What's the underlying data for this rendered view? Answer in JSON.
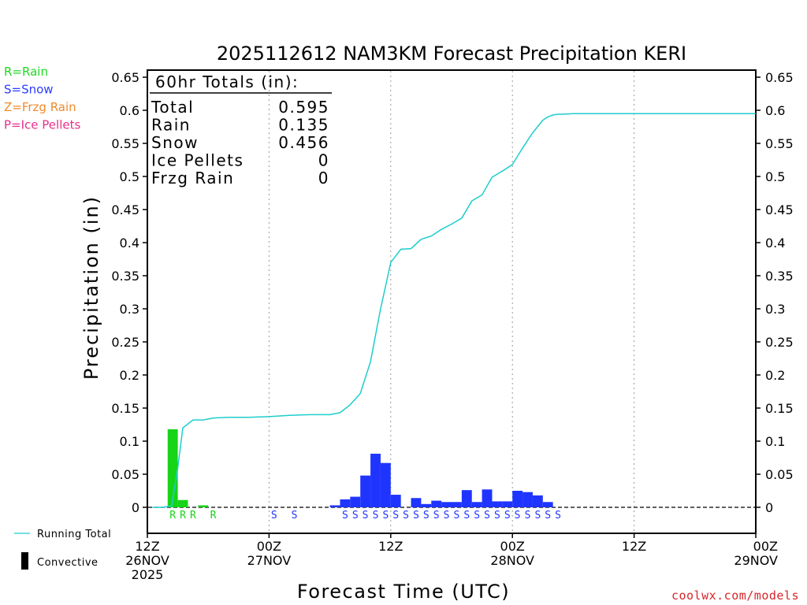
{
  "chart_data": {
    "type": "bar",
    "title": "2025112612 NAM3KM Forecast Precipitation KERI",
    "xlabel": "Forecast Time (UTC)",
    "ylabel": "Precipitation (in)",
    "ylim": [
      -0.035,
      0.66
    ],
    "yticks": [
      0,
      0.05,
      0.1,
      0.15,
      0.2,
      0.25,
      0.3,
      0.35,
      0.4,
      0.45,
      0.5,
      0.55,
      0.6,
      0.65
    ],
    "ytick_labels": [
      "0",
      "0.05",
      "0.1",
      "0.15",
      "0.2",
      "0.25",
      "0.3",
      "0.35",
      "0.4",
      "0.45",
      "0.5",
      "0.55",
      "0.6",
      "0.65"
    ],
    "xlim_hours": [
      0,
      60
    ],
    "xticks": [
      {
        "hour": 0,
        "lines": [
          "12Z",
          "26NOV",
          "2025"
        ]
      },
      {
        "hour": 12,
        "lines": [
          "00Z",
          "27NOV"
        ]
      },
      {
        "hour": 24,
        "lines": [
          "12Z"
        ]
      },
      {
        "hour": 36,
        "lines": [
          "00Z",
          "28NOV"
        ]
      },
      {
        "hour": 48,
        "lines": [
          "12Z"
        ]
      },
      {
        "hour": 60,
        "lines": [
          "00Z",
          "29NOV"
        ]
      }
    ],
    "vertical_grid_hours": [
      12,
      24,
      36,
      48
    ],
    "totals_box": {
      "header": "60hr Totals (in):",
      "rows": [
        {
          "label": "Total",
          "value": "0.595"
        },
        {
          "label": "Rain",
          "value": "0.135"
        },
        {
          "label": "Snow",
          "value": "0.456"
        },
        {
          "label": "Ice Pellets",
          "value": "0"
        },
        {
          "label": "Frzg Rain",
          "value": "0"
        }
      ]
    },
    "type_legend": [
      {
        "text": "R=Rain",
        "color": "#1ed81e"
      },
      {
        "text": "S=Snow",
        "color": "#2a3cff"
      },
      {
        "text": "Z=Frzg Rain",
        "color": "#ef8a2c"
      },
      {
        "text": "P=Ice Pellets",
        "color": "#e8308a"
      }
    ],
    "bottom_legend": {
      "running_total": "Running Total",
      "convective": "Convective"
    },
    "credit": "coolwx.com/models",
    "colors": {
      "rain": "#16d416",
      "snow": "#1f35ff",
      "running_total": "#1ecdcd",
      "convective": "#000000"
    },
    "bars": [
      {
        "hour": 3,
        "value": 0.118,
        "type": "rain"
      },
      {
        "hour": 4,
        "value": 0.011,
        "type": "rain"
      },
      {
        "hour": 6,
        "value": 0.003,
        "type": "rain"
      },
      {
        "hour": 19,
        "value": 0.003,
        "type": "snow"
      },
      {
        "hour": 20,
        "value": 0.012,
        "type": "snow"
      },
      {
        "hour": 21,
        "value": 0.016,
        "type": "snow"
      },
      {
        "hour": 22,
        "value": 0.048,
        "type": "snow"
      },
      {
        "hour": 23,
        "value": 0.081,
        "type": "snow"
      },
      {
        "hour": 24,
        "value": 0.067,
        "type": "snow"
      },
      {
        "hour": 25,
        "value": 0.019,
        "type": "snow"
      },
      {
        "hour": 27,
        "value": 0.014,
        "type": "snow"
      },
      {
        "hour": 28,
        "value": 0.005,
        "type": "snow"
      },
      {
        "hour": 29,
        "value": 0.01,
        "type": "snow"
      },
      {
        "hour": 30,
        "value": 0.008,
        "type": "snow"
      },
      {
        "hour": 31,
        "value": 0.008,
        "type": "snow"
      },
      {
        "hour": 32,
        "value": 0.026,
        "type": "snow"
      },
      {
        "hour": 33,
        "value": 0.008,
        "type": "snow"
      },
      {
        "hour": 34,
        "value": 0.027,
        "type": "snow"
      },
      {
        "hour": 35,
        "value": 0.009,
        "type": "snow"
      },
      {
        "hour": 36,
        "value": 0.009,
        "type": "snow"
      },
      {
        "hour": 37,
        "value": 0.025,
        "type": "snow"
      },
      {
        "hour": 38,
        "value": 0.023,
        "type": "snow"
      },
      {
        "hour": 39,
        "value": 0.018,
        "type": "snow"
      },
      {
        "hour": 40,
        "value": 0.008,
        "type": "snow"
      }
    ],
    "precip_type_letters": [
      {
        "hour": 3,
        "letter": "R"
      },
      {
        "hour": 4,
        "letter": "R"
      },
      {
        "hour": 5,
        "letter": "R"
      },
      {
        "hour": 7,
        "letter": "R"
      },
      {
        "hour": 13,
        "letter": "S"
      },
      {
        "hour": 15,
        "letter": "S"
      },
      {
        "hour": 20,
        "letter": "S"
      },
      {
        "hour": 21,
        "letter": "S"
      },
      {
        "hour": 22,
        "letter": "S"
      },
      {
        "hour": 23,
        "letter": "S"
      },
      {
        "hour": 24,
        "letter": "S"
      },
      {
        "hour": 25,
        "letter": "S"
      },
      {
        "hour": 26,
        "letter": "S"
      },
      {
        "hour": 27,
        "letter": "S"
      },
      {
        "hour": 28,
        "letter": "S"
      },
      {
        "hour": 29,
        "letter": "S"
      },
      {
        "hour": 30,
        "letter": "S"
      },
      {
        "hour": 31,
        "letter": "S"
      },
      {
        "hour": 32,
        "letter": "S"
      },
      {
        "hour": 33,
        "letter": "S"
      },
      {
        "hour": 34,
        "letter": "S"
      },
      {
        "hour": 35,
        "letter": "S"
      },
      {
        "hour": 36,
        "letter": "S"
      },
      {
        "hour": 37,
        "letter": "S"
      },
      {
        "hour": 38,
        "letter": "S"
      },
      {
        "hour": 39,
        "letter": "S"
      },
      {
        "hour": 40,
        "letter": "S"
      },
      {
        "hour": 41,
        "letter": "S"
      }
    ],
    "running_total": {
      "hours": [
        0.5,
        1.5,
        2.4,
        3.0,
        3.5,
        4.5,
        5.5,
        6.5,
        8,
        10,
        12,
        14,
        16,
        18,
        19,
        20,
        21,
        22,
        23,
        23.5,
        24,
        25,
        26,
        27,
        28,
        29,
        30,
        31,
        32,
        33,
        34,
        35,
        36,
        37,
        38,
        39,
        39.5,
        40,
        40.5,
        41,
        42,
        43,
        44,
        46,
        48,
        50,
        52,
        54,
        56,
        58,
        60
      ],
      "values": [
        0,
        0,
        0.002,
        0.06,
        0.12,
        0.132,
        0.132,
        0.135,
        0.136,
        0.136,
        0.137,
        0.139,
        0.14,
        0.14,
        0.143,
        0.155,
        0.172,
        0.22,
        0.3,
        0.335,
        0.37,
        0.39,
        0.391,
        0.405,
        0.41,
        0.42,
        0.428,
        0.437,
        0.463,
        0.472,
        0.499,
        0.508,
        0.518,
        0.543,
        0.566,
        0.585,
        0.59,
        0.593,
        0.594,
        0.594,
        0.595,
        0.595,
        0.595,
        0.595,
        0.595,
        0.595,
        0.595,
        0.595,
        0.595,
        0.595,
        0.595
      ]
    }
  }
}
